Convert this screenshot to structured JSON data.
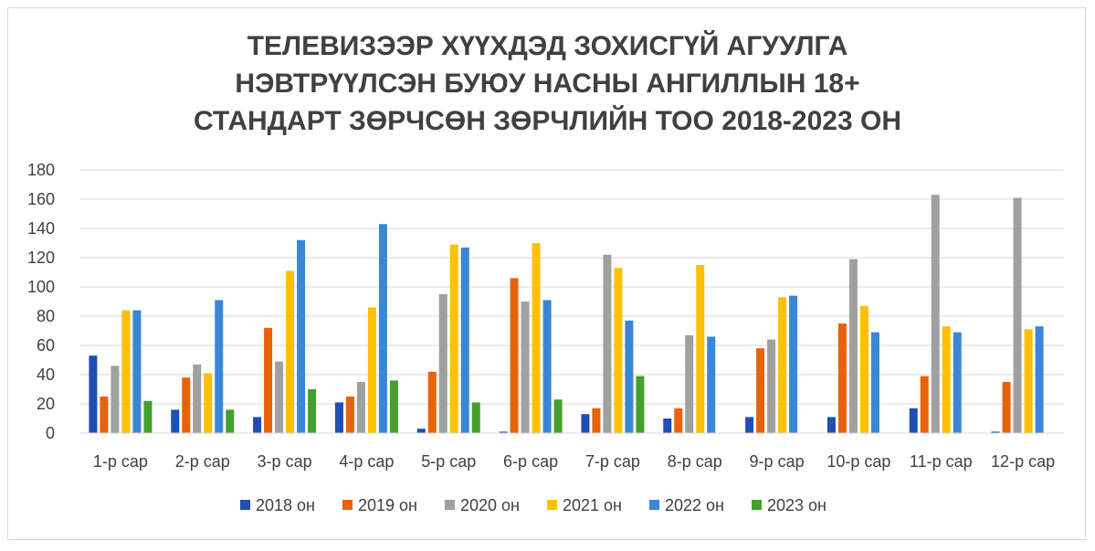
{
  "chart_data": {
    "type": "bar",
    "title_lines": [
      "ТЕЛЕВИЗЭЭР ХҮҮХДЭД ЗОХИСГҮЙ АГУУЛГА",
      "НЭВТРҮҮЛСЭН БУЮУ НАСНЫ АНГИЛЛЫН 18+",
      "СТАНДАРТ ЗӨРЧСӨН ЗӨРЧЛИЙН ТОО 2018-2023 ОН"
    ],
    "categories": [
      "1-р сар",
      "2-р сар",
      "3-р сар",
      "4-р сар",
      "5-р сар",
      "6-р сар",
      "7-р сар",
      "8-р сар",
      "9-р сар",
      "10-р сар",
      "11-р сар",
      "12-р сар"
    ],
    "ylim": [
      0,
      180
    ],
    "yticks": [
      "0",
      "20",
      "40",
      "60",
      "80",
      "100",
      "120",
      "140",
      "160",
      "180"
    ],
    "grid": true,
    "legend_position": "bottom",
    "series": [
      {
        "name": "2018 он",
        "color": "#1f4eb4",
        "values": [
          53,
          16,
          11,
          21,
          3,
          1,
          13,
          10,
          11,
          11,
          17,
          1
        ]
      },
      {
        "name": "2019 он",
        "color": "#e8620a",
        "values": [
          25,
          38,
          72,
          25,
          42,
          106,
          17,
          17,
          58,
          75,
          39,
          35
        ]
      },
      {
        "name": "2020 он",
        "color": "#a0a0a0",
        "values": [
          46,
          47,
          49,
          35,
          95,
          90,
          122,
          67,
          64,
          119,
          163,
          161
        ]
      },
      {
        "name": "2021 он",
        "color": "#ffc000",
        "values": [
          84,
          41,
          111,
          86,
          129,
          130,
          113,
          115,
          93,
          87,
          73,
          71
        ]
      },
      {
        "name": "2022 он",
        "color": "#3a86d6",
        "values": [
          84,
          91,
          132,
          143,
          127,
          91,
          77,
          66,
          94,
          69,
          69,
          73
        ]
      },
      {
        "name": "2023 он",
        "color": "#43a02c",
        "values": [
          22,
          16,
          30,
          36,
          21,
          23,
          39,
          null,
          null,
          null,
          null,
          null
        ]
      }
    ]
  }
}
